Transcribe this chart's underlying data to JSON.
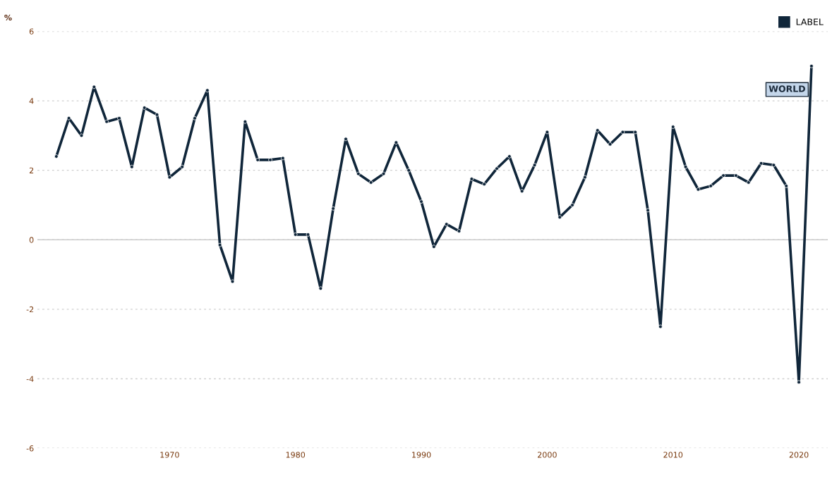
{
  "chart_data": {
    "type": "line",
    "ylabel": "%",
    "x": [
      1961,
      1962,
      1963,
      1964,
      1965,
      1966,
      1967,
      1968,
      1969,
      1970,
      1971,
      1972,
      1973,
      1974,
      1975,
      1976,
      1977,
      1978,
      1979,
      1980,
      1981,
      1982,
      1983,
      1984,
      1985,
      1986,
      1987,
      1988,
      1989,
      1990,
      1991,
      1992,
      1993,
      1994,
      1995,
      1996,
      1997,
      1998,
      1999,
      2000,
      2001,
      2002,
      2003,
      2004,
      2005,
      2006,
      2007,
      2008,
      2009,
      2010,
      2011,
      2012,
      2013,
      2014,
      2015,
      2016,
      2017,
      2018,
      2019,
      2020,
      2021
    ],
    "series": [
      {
        "name": "LABEL",
        "color": "#10263a",
        "values": [
          2.4,
          3.5,
          3.0,
          4.4,
          3.4,
          3.5,
          2.1,
          3.8,
          3.6,
          1.8,
          2.1,
          3.5,
          4.3,
          -0.15,
          -1.2,
          3.4,
          2.3,
          2.3,
          2.35,
          0.15,
          0.15,
          -1.4,
          0.9,
          2.9,
          1.9,
          1.65,
          1.9,
          2.8,
          2.0,
          1.1,
          -0.2,
          0.45,
          0.25,
          1.75,
          1.6,
          2.05,
          2.4,
          1.4,
          2.15,
          3.1,
          0.65,
          1.0,
          1.8,
          3.15,
          2.75,
          3.1,
          3.1,
          0.85,
          -2.5,
          3.25,
          2.1,
          1.45,
          1.55,
          1.85,
          1.85,
          1.65,
          2.2,
          2.15,
          1.55,
          -4.1,
          5.0
        ]
      }
    ],
    "xlim": [
      1959.5,
      2022.3
    ],
    "xticks": [
      1970,
      1980,
      1990,
      2000,
      2010,
      2020
    ],
    "ylim": [
      -6,
      6
    ],
    "yticks": [
      -6,
      -4,
      -2,
      0,
      2,
      4,
      6
    ],
    "ref_lines": [
      {
        "axis": "y",
        "value": 0,
        "color": "#cccccc",
        "line_style": "solid"
      }
    ],
    "annotations": [
      {
        "text": "WORLD",
        "x": 2021,
        "y": 5.0
      }
    ],
    "grid": "y",
    "legend": "top right",
    "marker": "circle",
    "line_style": "solid"
  }
}
